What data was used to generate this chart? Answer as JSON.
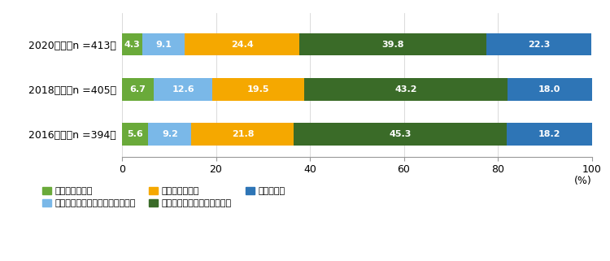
{
  "years": [
    "2020年度（n =413）",
    "2018年度（n =405）",
    "2016年度（n =394）"
  ],
  "categories": [
    "十分でなかった",
    "どちらかといえば十分でなかった",
    "どちらでもない",
    "どちらかといえば十分だった",
    "十分だった"
  ],
  "values": [
    [
      4.3,
      9.1,
      24.4,
      39.8,
      22.3
    ],
    [
      6.7,
      12.6,
      19.5,
      43.2,
      18.0
    ],
    [
      5.6,
      9.2,
      21.8,
      45.3,
      18.2
    ]
  ],
  "colors": [
    "#6aaa3a",
    "#7ab8e8",
    "#f5a800",
    "#3a6b28",
    "#2e75b6"
  ],
  "bar_height": 0.5,
  "xlim": [
    0,
    100
  ],
  "xticks": [
    0,
    20,
    40,
    60,
    80,
    100
  ],
  "pct_label": "(%)",
  "legend_labels": [
    "十分でなかった",
    "どちらかといえば十分でなかった",
    "どちらでもない",
    "どちらかといえば十分だった",
    "十分だった"
  ],
  "text_color": "#ffffff",
  "fontsize_bar": 8,
  "fontsize_label": 9,
  "fontsize_legend": 8,
  "fontsize_axis": 9
}
